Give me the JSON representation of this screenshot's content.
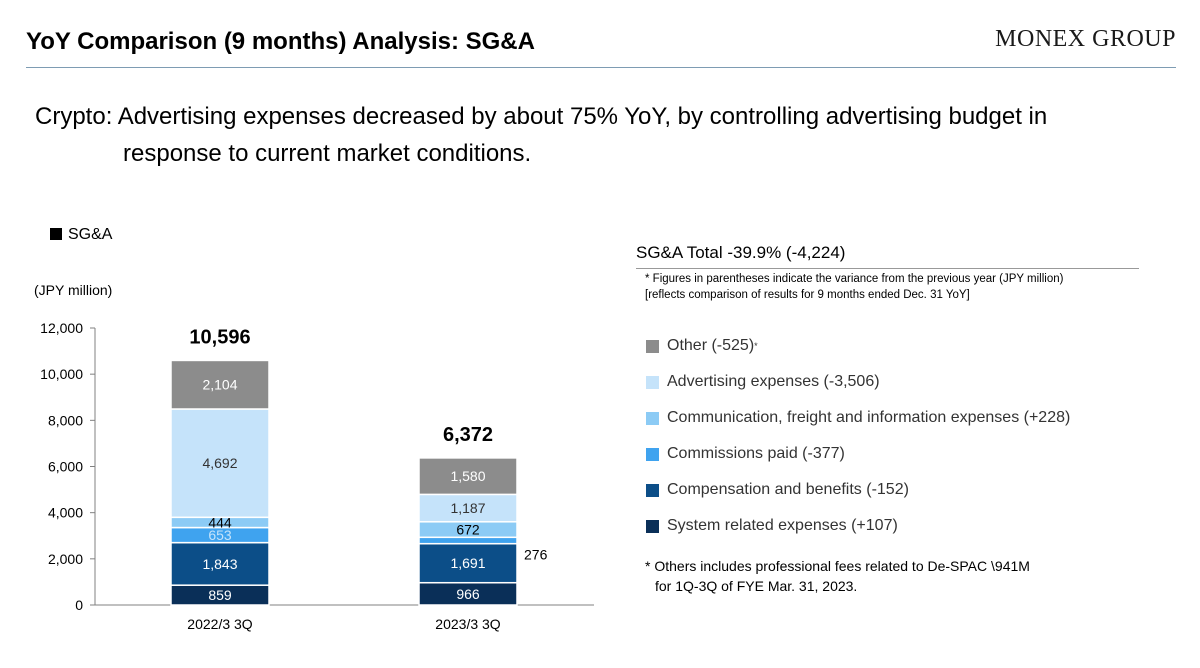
{
  "header": {
    "title": "YoY Comparison (9 months) Analysis: SG&A",
    "logo": "MONEX GROUP"
  },
  "headline": {
    "line1": "Crypto: Advertising expenses decreased by about 75% YoY, by controlling advertising budget in",
    "line2": "response to current market conditions."
  },
  "chart_labels": {
    "legend_title": "SG&A",
    "unit": "(JPY million)"
  },
  "right_panel": {
    "total_title": "SG&A Total -39.9% (-4,224)",
    "note_line1": "* Figures in parentheses indicate the variance from the previous year (JPY million)",
    "note_line2": "[reflects comparison of results for 9 months ended Dec. 31 YoY]",
    "legend": [
      {
        "label": "Other (-525)",
        "sup": "*",
        "color": "#8c8c8c"
      },
      {
        "label": "Advertising expenses (-3,506)",
        "sup": "",
        "color": "#c5e3fa"
      },
      {
        "label": "Communication, freight and information expenses (+228)",
        "sup": "",
        "color": "#8ccbf5"
      },
      {
        "label": "Commissions paid (-377)",
        "sup": "",
        "color": "#3fa3ef"
      },
      {
        "label": "Compensation and benefits (-152)",
        "sup": "",
        "color": "#0c4e88"
      },
      {
        "label": "System related expenses (+107)",
        "sup": "",
        "color": "#0a2f58"
      }
    ],
    "footnote_line1": "* Others includes professional fees related to De-SPAC \\941M",
    "footnote_line2": "for 1Q-3Q of FYE Mar. 31, 2023."
  },
  "chart_data": {
    "type": "bar",
    "stacked": true,
    "categories": [
      "2022/3 3Q",
      "2023/3 3Q"
    ],
    "totals": [
      "10,596",
      "6,372"
    ],
    "ylim": [
      0,
      12000
    ],
    "yticks": [
      0,
      2000,
      4000,
      6000,
      8000,
      10000,
      12000
    ],
    "ytick_labels": [
      "0",
      "2,000",
      "4,000",
      "6,000",
      "8,000",
      "10,000",
      "12,000"
    ],
    "series": [
      {
        "name": "System related expenses",
        "values": [
          859,
          966
        ],
        "labels": [
          "859",
          "966"
        ],
        "color": "#0a2f58",
        "label_color": "#ffffff"
      },
      {
        "name": "Compensation and benefits",
        "values": [
          1843,
          1691
        ],
        "labels": [
          "1,843",
          "1,691"
        ],
        "color": "#0c4e88",
        "label_color": "#ffffff"
      },
      {
        "name": "Commissions paid",
        "values": [
          653,
          276
        ],
        "labels": [
          "653",
          "276"
        ],
        "color": "#3fa3ef",
        "label_color": "#c5e3fa"
      },
      {
        "name": "Communication, freight and information expenses",
        "values": [
          444,
          672
        ],
        "labels": [
          "444",
          "672"
        ],
        "color": "#8ccbf5",
        "label_color": "#000000"
      },
      {
        "name": "Advertising expenses",
        "values": [
          4692,
          1187
        ],
        "labels": [
          "4,692",
          "1,187"
        ],
        "color": "#c5e3fa",
        "label_color": "#333333"
      },
      {
        "name": "Other",
        "values": [
          2104,
          1580
        ],
        "labels": [
          "2,104",
          "1,580"
        ],
        "color": "#8c8c8c",
        "label_color": "#ffffff"
      }
    ]
  }
}
